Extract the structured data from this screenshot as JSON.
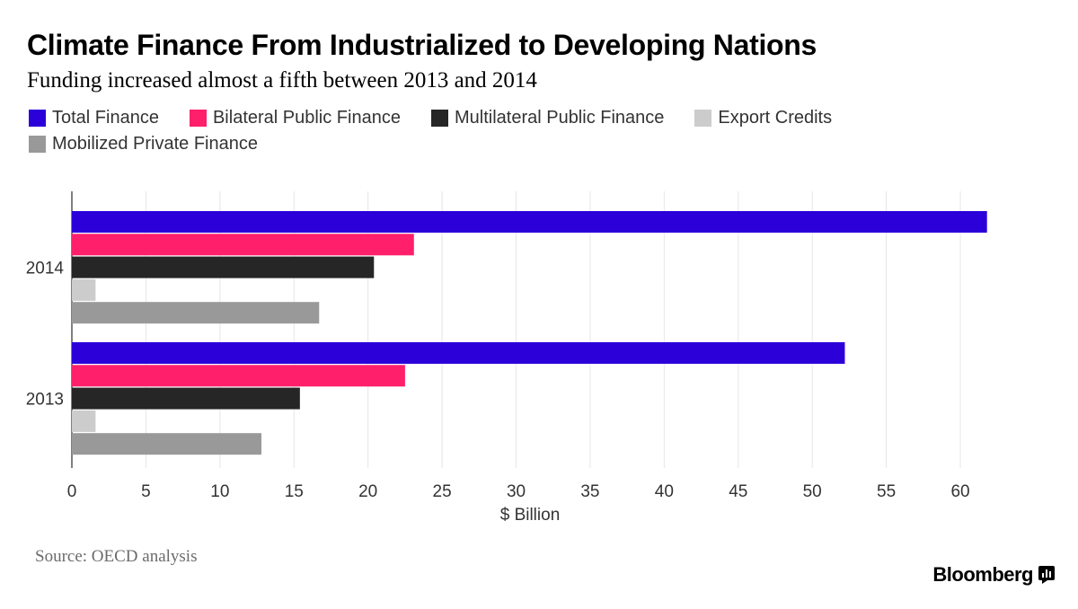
{
  "title": "Climate Finance From Industrialized to Developing Nations",
  "subtitle": "Funding increased almost a fifth between 2013 and 2014",
  "source": "Source: OECD analysis",
  "brand": "Bloomberg",
  "chart_data": {
    "type": "bar",
    "orientation": "horizontal",
    "categories": [
      "2014",
      "2013"
    ],
    "series": [
      {
        "name": "Total Finance",
        "color": "#2b00d9",
        "values": [
          61.8,
          52.2
        ]
      },
      {
        "name": "Bilateral Public Finance",
        "color": "#ff1f6b",
        "values": [
          23.1,
          22.5
        ]
      },
      {
        "name": "Multilateral Public Finance",
        "color": "#262626",
        "values": [
          20.4,
          15.4
        ]
      },
      {
        "name": "Export Credits",
        "color": "#cccccc",
        "values": [
          1.6,
          1.6
        ]
      },
      {
        "name": "Mobilized Private Finance",
        "color": "#999999",
        "values": [
          16.7,
          12.8
        ]
      }
    ],
    "xlabel": "$ Billion",
    "ylabel": "",
    "xlim": [
      0,
      62
    ],
    "xticks": [
      0,
      5,
      10,
      15,
      20,
      25,
      30,
      35,
      40,
      45,
      50,
      55,
      60
    ],
    "grid": true,
    "legend_position": "top-left"
  }
}
